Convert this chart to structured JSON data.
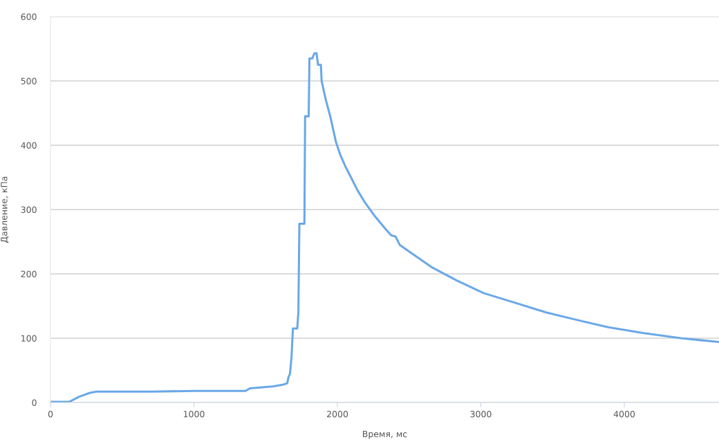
{
  "chart_data": {
    "type": "line",
    "xlabel": "Время, мс",
    "ylabel": "Давление, кПа",
    "x": [
      0,
      130,
      200,
      275,
      320,
      700,
      1000,
      1360,
      1390,
      1550,
      1625,
      1650,
      1660,
      1670,
      1680,
      1690,
      1720,
      1728,
      1735,
      1770,
      1775,
      1800,
      1805,
      1825,
      1840,
      1855,
      1865,
      1885,
      1890,
      1920,
      1950,
      1990,
      2020,
      2060,
      2095,
      2140,
      2195,
      2260,
      2335,
      2375,
      2405,
      2435,
      2530,
      2660,
      2830,
      3020,
      3240,
      3455,
      3695,
      3890,
      4130,
      4395,
      4660
    ],
    "series": [
      {
        "color": "#6aa8e8",
        "values": [
          1,
          1,
          9,
          15,
          17,
          17,
          18,
          18,
          22,
          25,
          28,
          30,
          40,
          45,
          70,
          115,
          115,
          140,
          278,
          278,
          445,
          445,
          535,
          535,
          543,
          543,
          525,
          525,
          500,
          470,
          445,
          405,
          385,
          365,
          350,
          330,
          310,
          290,
          270,
          260,
          258,
          245,
          230,
          210,
          190,
          170,
          155,
          140,
          127,
          117,
          108,
          100,
          94
        ]
      }
    ],
    "xlim": [
      0,
      4660
    ],
    "ylim": [
      0,
      600
    ],
    "xticks": [
      0,
      1000,
      2000,
      3000,
      4000
    ],
    "yticks": [
      0,
      100,
      200,
      300,
      400,
      500,
      600
    ],
    "grid": "y",
    "marker": "none",
    "line_style": "solid"
  }
}
